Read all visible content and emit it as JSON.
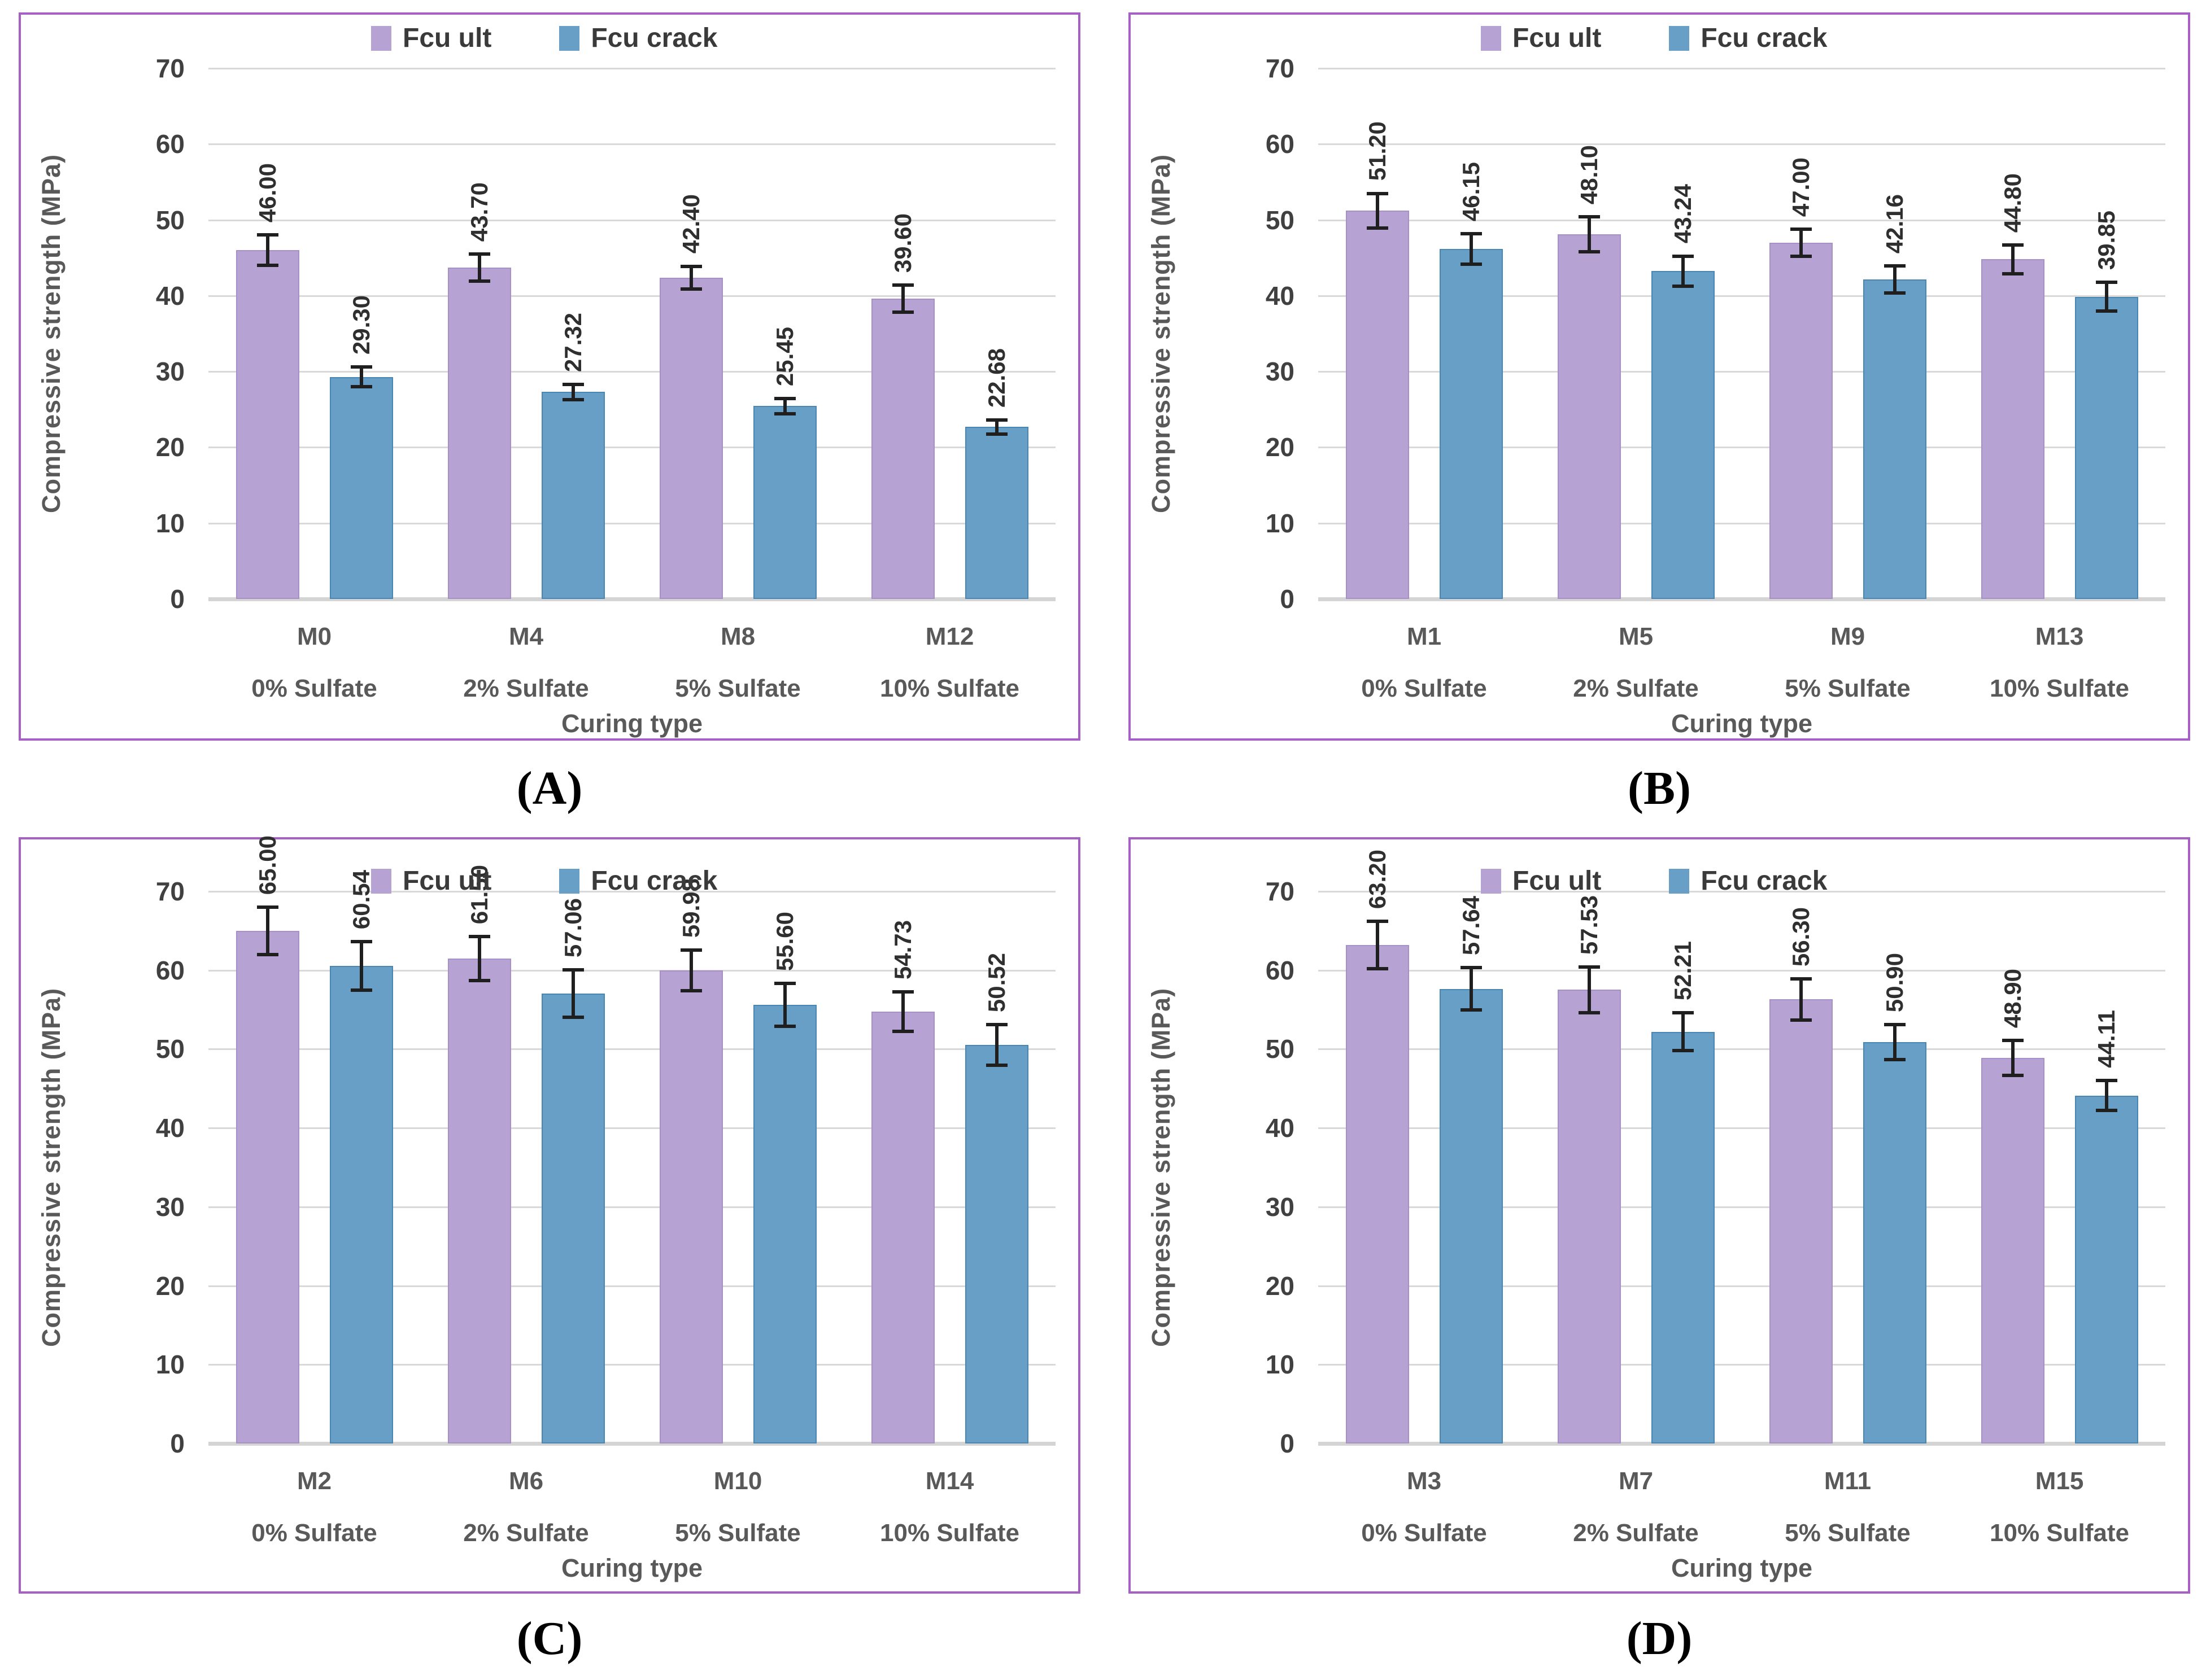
{
  "figure": {
    "ylabel": "Compressive strength (MPa)",
    "xlabel": "Curing type",
    "legend": {
      "ult": "Fcu ult",
      "crack": "Fcu crack"
    },
    "colors": {
      "fcu_ult": "#b7a2d4",
      "fcu_ult_border": "#a690c5",
      "fcu_crack": "#679fc6",
      "fcu_crack_border": "#4a86b2",
      "grid": "#d9d9d9",
      "baseline": "#d4d4d4",
      "panel_border": "#a55fc5",
      "tick_text": "#404040",
      "value_text": "#2f2f2f",
      "axis_text": "#595959",
      "error_bar": "#1f1f1f",
      "letter_text": "#000000"
    }
  },
  "chart_data": [
    {
      "id": "A",
      "panel_label": "(A)",
      "type": "bar",
      "title": "",
      "ylabel": "Compressive strength (MPa)",
      "xlabel": "Curing type",
      "ylim": [
        0,
        70
      ],
      "yticks": [
        0,
        10,
        20,
        30,
        40,
        50,
        60,
        70
      ],
      "grid": true,
      "legend_position": "top-center",
      "legend": [
        "Fcu ult",
        "Fcu crack"
      ],
      "categories": [
        {
          "mix": "M0",
          "sulfate": "0% Sulfate"
        },
        {
          "mix": "M4",
          "sulfate": "2% Sulfate"
        },
        {
          "mix": "M8",
          "sulfate": "5% Sulfate"
        },
        {
          "mix": "M12",
          "sulfate": "10% Sulfate"
        }
      ],
      "series": [
        {
          "name": "Fcu ult",
          "values": [
            46.0,
            43.7,
            42.4,
            39.6
          ],
          "labels": [
            "46.00",
            "43.70",
            "42.40",
            "39.60"
          ],
          "errors": [
            2.0,
            1.8,
            1.5,
            1.8
          ]
        },
        {
          "name": "Fcu crack",
          "values": [
            29.3,
            27.32,
            25.45,
            22.68
          ],
          "labels": [
            "29.30",
            "27.32",
            "25.45",
            "22.68"
          ],
          "errors": [
            1.3,
            1.0,
            1.0,
            0.9
          ]
        }
      ]
    },
    {
      "id": "B",
      "panel_label": "(B)",
      "type": "bar",
      "title": "",
      "ylabel": "Compressive strength (MPa)",
      "xlabel": "Curing type",
      "ylim": [
        0,
        70
      ],
      "yticks": [
        0,
        10,
        20,
        30,
        40,
        50,
        60,
        70
      ],
      "grid": true,
      "legend_position": "top-center",
      "legend": [
        "Fcu ult",
        "Fcu crack"
      ],
      "categories": [
        {
          "mix": "M1",
          "sulfate": "0% Sulfate"
        },
        {
          "mix": "M5",
          "sulfate": "2% Sulfate"
        },
        {
          "mix": "M9",
          "sulfate": "5% Sulfate"
        },
        {
          "mix": "M13",
          "sulfate": "10% Sulfate"
        }
      ],
      "series": [
        {
          "name": "Fcu ult",
          "values": [
            51.2,
            48.1,
            47.0,
            44.8
          ],
          "labels": [
            "51.20",
            "48.10",
            "47.00",
            "44.80"
          ],
          "errors": [
            2.3,
            2.3,
            1.8,
            1.9
          ]
        },
        {
          "name": "Fcu crack",
          "values": [
            46.15,
            43.24,
            42.16,
            39.85
          ],
          "labels": [
            "46.15",
            "43.24",
            "42.16",
            "39.85"
          ],
          "errors": [
            2.0,
            2.0,
            1.8,
            1.9
          ]
        }
      ]
    },
    {
      "id": "C",
      "panel_label": "(C)",
      "type": "bar",
      "title": "",
      "ylabel": "Compressive strength (MPa)",
      "xlabel": "Curing type",
      "ylim": [
        0,
        70
      ],
      "yticks": [
        0,
        10,
        20,
        30,
        40,
        50,
        60,
        70
      ],
      "grid": true,
      "legend_position": "top-center",
      "legend": [
        "Fcu ult",
        "Fcu crack"
      ],
      "categories": [
        {
          "mix": "M2",
          "sulfate": "0% Sulfate"
        },
        {
          "mix": "M6",
          "sulfate": "2% Sulfate"
        },
        {
          "mix": "M10",
          "sulfate": "5% Sulfate"
        },
        {
          "mix": "M14",
          "sulfate": "10% Sulfate"
        }
      ],
      "series": [
        {
          "name": "Fcu ult",
          "values": [
            65.0,
            61.5,
            59.98,
            54.73
          ],
          "labels": [
            "65.00",
            "61.50",
            "59.98",
            "54.73"
          ],
          "errors": [
            3.0,
            2.8,
            2.6,
            2.5
          ]
        },
        {
          "name": "Fcu crack",
          "values": [
            60.54,
            57.06,
            55.6,
            50.52
          ],
          "labels": [
            "60.54",
            "57.06",
            "55.60",
            "50.52"
          ],
          "errors": [
            3.1,
            3.0,
            2.7,
            2.6
          ]
        }
      ]
    },
    {
      "id": "D",
      "panel_label": "(D)",
      "type": "bar",
      "title": "",
      "ylabel": "Compressive strength (MPa)",
      "xlabel": "Curing type",
      "ylim": [
        0,
        70
      ],
      "yticks": [
        0,
        10,
        20,
        30,
        40,
        50,
        60,
        70
      ],
      "grid": true,
      "legend_position": "top-center",
      "legend": [
        "Fcu ult",
        "Fcu crack"
      ],
      "categories": [
        {
          "mix": "M3",
          "sulfate": "0% Sulfate"
        },
        {
          "mix": "M7",
          "sulfate": "2% Sulfate"
        },
        {
          "mix": "M11",
          "sulfate": "5% Sulfate"
        },
        {
          "mix": "M15",
          "sulfate": "10% Sulfate"
        }
      ],
      "series": [
        {
          "name": "Fcu ult",
          "values": [
            63.2,
            57.53,
            56.3,
            48.9
          ],
          "labels": [
            "63.20",
            "57.53",
            "56.30",
            "48.90"
          ],
          "errors": [
            3.0,
            2.9,
            2.6,
            2.2
          ]
        },
        {
          "name": "Fcu crack",
          "values": [
            57.64,
            52.21,
            50.9,
            44.11
          ],
          "labels": [
            "57.64",
            "52.21",
            "50.90",
            "44.11"
          ],
          "errors": [
            2.7,
            2.4,
            2.2,
            1.9
          ]
        }
      ]
    }
  ]
}
